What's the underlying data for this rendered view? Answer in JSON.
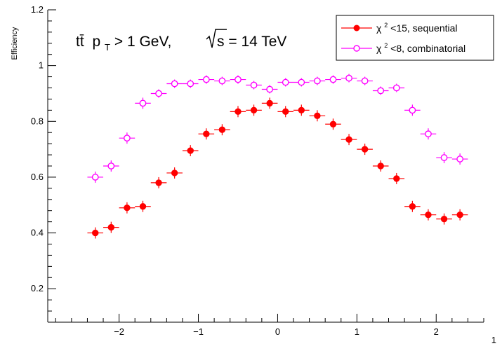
{
  "chart_data": {
    "type": "scatter",
    "title": "",
    "annotation": {
      "process": "tt̄",
      "cut": "p",
      "cut_sub": "T",
      "cut_rest": " > 1 GeV,",
      "energy_prefix": "s",
      "energy_rest": " = 14 TeV"
    },
    "xlabel": "",
    "ylabel": "Efficiency",
    "corner_label": "1",
    "xlim": [
      -2.9,
      2.6
    ],
    "ylim": [
      0.08,
      1.2
    ],
    "x_ticks": [
      -2,
      -1,
      0,
      1,
      2
    ],
    "x_tick_labels": [
      "−2",
      "−1",
      "0",
      "1",
      "2"
    ],
    "y_ticks": [
      0.2,
      0.4,
      0.6,
      0.8,
      1.0,
      1.2
    ],
    "y_tick_labels": [
      "0.2",
      "0.4",
      "0.6",
      "0.8",
      "1",
      "1.2"
    ],
    "grid": false,
    "legend_position": "top-right",
    "x_error": 0.1,
    "series": [
      {
        "name": "χ²<15, sequential",
        "legend_base": "χ",
        "legend_sup": "2",
        "legend_rest": "<15, sequential",
        "color": "#ff0000",
        "marker": "filled-circle",
        "x": [
          -2.3,
          -2.1,
          -1.9,
          -1.7,
          -1.5,
          -1.3,
          -1.1,
          -0.9,
          -0.7,
          -0.5,
          -0.3,
          -0.1,
          0.1,
          0.3,
          0.5,
          0.7,
          0.9,
          1.1,
          1.3,
          1.5,
          1.7,
          1.9,
          2.1,
          2.3
        ],
        "y": [
          0.4,
          0.42,
          0.49,
          0.495,
          0.58,
          0.615,
          0.695,
          0.755,
          0.77,
          0.835,
          0.84,
          0.865,
          0.835,
          0.84,
          0.82,
          0.79,
          0.735,
          0.7,
          0.64,
          0.595,
          0.495,
          0.465,
          0.45,
          0.465
        ],
        "yerr": [
          0.02,
          0.02,
          0.02,
          0.02,
          0.02,
          0.02,
          0.02,
          0.02,
          0.02,
          0.02,
          0.02,
          0.02,
          0.02,
          0.02,
          0.02,
          0.02,
          0.02,
          0.02,
          0.02,
          0.02,
          0.02,
          0.02,
          0.02,
          0.02
        ]
      },
      {
        "name": "χ²<8, combinatorial",
        "legend_base": "χ",
        "legend_sup": "2",
        "legend_rest": "<8, combinatorial",
        "color": "#ff00ff",
        "marker": "open-circle",
        "x": [
          -2.3,
          -2.1,
          -1.9,
          -1.7,
          -1.5,
          -1.3,
          -1.1,
          -0.9,
          -0.7,
          -0.5,
          -0.3,
          -0.1,
          0.1,
          0.3,
          0.5,
          0.7,
          0.9,
          1.1,
          1.3,
          1.5,
          1.7,
          1.9,
          2.1,
          2.3
        ],
        "y": [
          0.6,
          0.64,
          0.74,
          0.865,
          0.9,
          0.935,
          0.935,
          0.95,
          0.945,
          0.95,
          0.93,
          0.915,
          0.94,
          0.94,
          0.945,
          0.95,
          0.955,
          0.945,
          0.91,
          0.92,
          0.84,
          0.755,
          0.67,
          0.665
        ],
        "yerr": [
          0.02,
          0.02,
          0.02,
          0.02,
          0.015,
          0.015,
          0.015,
          0.015,
          0.015,
          0.015,
          0.015,
          0.015,
          0.015,
          0.015,
          0.015,
          0.015,
          0.015,
          0.015,
          0.015,
          0.015,
          0.02,
          0.02,
          0.02,
          0.02
        ]
      }
    ]
  }
}
